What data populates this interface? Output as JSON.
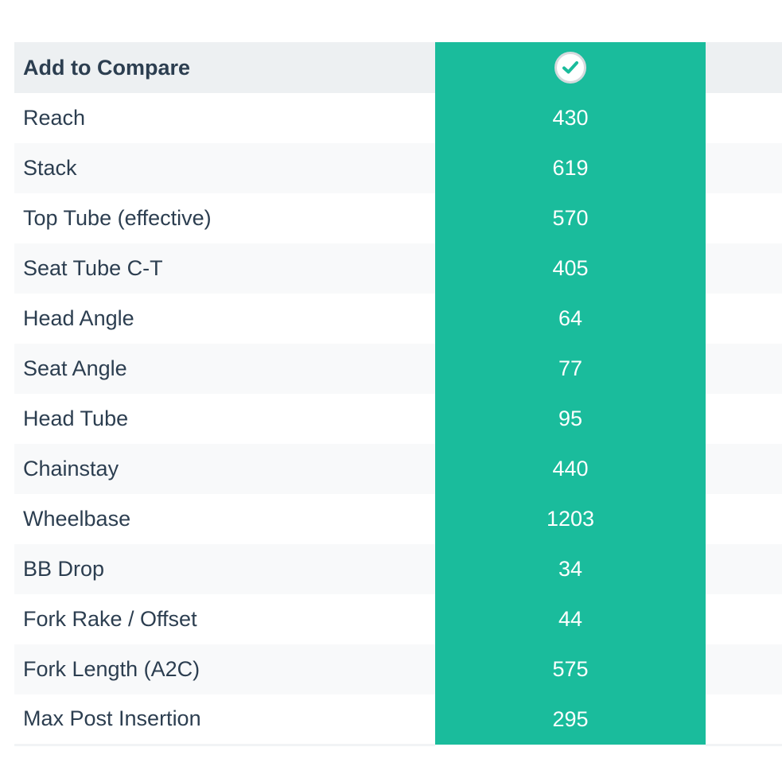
{
  "header": {
    "label": "Add to Compare",
    "checkbox_checked": true,
    "check_icon": "check-icon"
  },
  "colors": {
    "highlight": "#1abc9c",
    "header_bg": "#edf0f2",
    "stripe_bg": "#f8f9fa",
    "text": "#2c3e50"
  },
  "rows": [
    {
      "label": "Reach",
      "value": "430"
    },
    {
      "label": "Stack",
      "value": "619"
    },
    {
      "label": "Top Tube (effective)",
      "value": "570"
    },
    {
      "label": "Seat Tube C-T",
      "value": "405"
    },
    {
      "label": "Head Angle",
      "value": "64"
    },
    {
      "label": "Seat Angle",
      "value": "77"
    },
    {
      "label": "Head Tube",
      "value": "95"
    },
    {
      "label": "Chainstay",
      "value": "440"
    },
    {
      "label": "Wheelbase",
      "value": "1203"
    },
    {
      "label": "BB Drop",
      "value": "34"
    },
    {
      "label": "Fork Rake / Offset",
      "value": "44"
    },
    {
      "label": "Fork Length (A2C)",
      "value": "575"
    },
    {
      "label": "Max Post Insertion",
      "value": "295"
    }
  ]
}
